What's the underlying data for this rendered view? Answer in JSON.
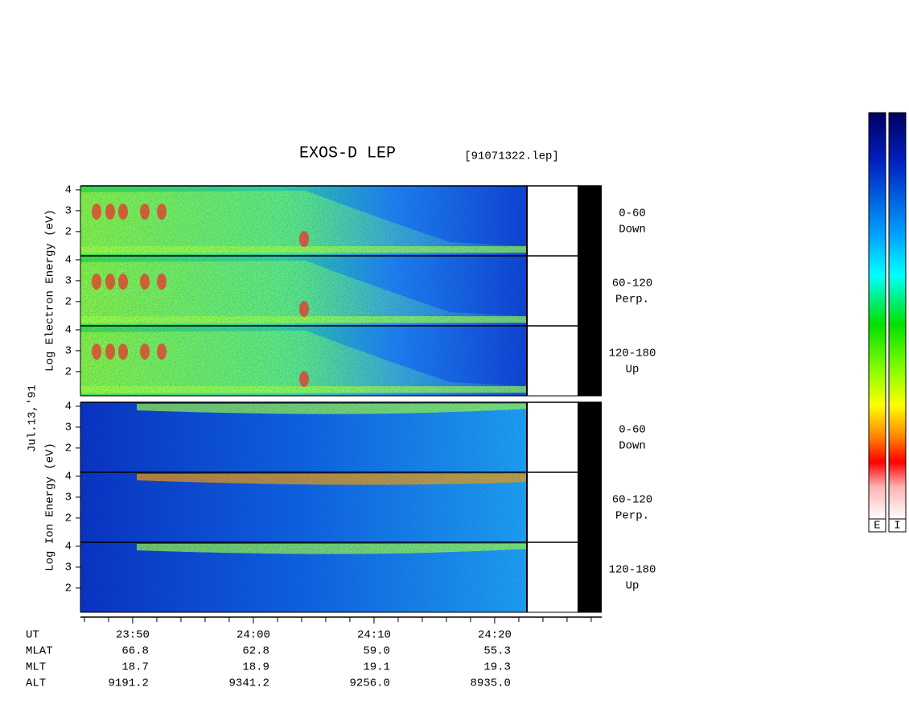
{
  "chart_data": {
    "type": "spectrogram",
    "title": "EXOS-D LEP",
    "subtitle": "[91071322.lep]",
    "date_label": "Jul.13,'91",
    "groups": [
      {
        "ylabel": "Log Electron Energy (eV)",
        "colorbar_label": "E",
        "panels": [
          {
            "pitch": "0-60",
            "direction": "Down"
          },
          {
            "pitch": "60-120",
            "direction": "Perp."
          },
          {
            "pitch": "120-180",
            "direction": "Up"
          }
        ]
      },
      {
        "ylabel": "Log Ion Energy (eV)",
        "colorbar_label": "I",
        "panels": [
          {
            "pitch": "0-60",
            "direction": "Down"
          },
          {
            "pitch": "60-120",
            "direction": "Perp."
          },
          {
            "pitch": "120-180",
            "direction": "Up"
          }
        ]
      }
    ],
    "ylim": [
      0.84,
      4.19
    ],
    "yticks": [
      2,
      3,
      4
    ],
    "xlim": [
      1425.67,
      1468.87
    ],
    "xticks": [
      {
        "value": 1430,
        "label": "23:50"
      },
      {
        "value": 1440,
        "label": "24:00"
      },
      {
        "value": 1450,
        "label": "24:10"
      },
      {
        "value": 1460,
        "label": "24:20"
      }
    ],
    "minor_xticks": [
      1426,
      1428,
      1432,
      1434,
      1436,
      1438,
      1442,
      1444,
      1446,
      1448,
      1452,
      1454,
      1456,
      1458,
      1462,
      1464,
      1466,
      1468
    ],
    "x_row_label": "UT",
    "orbit_rows": [
      {
        "label": "MLAT",
        "values": [
          "66.8",
          "62.8",
          "59.0",
          "55.3"
        ]
      },
      {
        "label": "MLT",
        "values": [
          "18.7",
          "18.9",
          "19.1",
          "19.3"
        ]
      },
      {
        "label": "ALT",
        "values": [
          "9191.2",
          "9341.2",
          "9256.0",
          "8935.0"
        ]
      }
    ]
  }
}
